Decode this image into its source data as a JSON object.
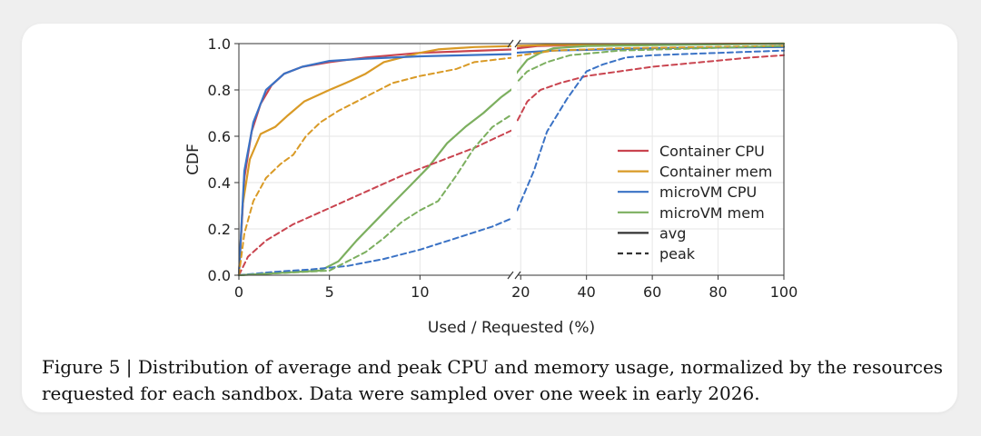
{
  "chart_data": {
    "type": "line",
    "title": "",
    "xlabel": "Used / Requested (%)",
    "ylabel": "CDF",
    "ylim": [
      0,
      1
    ],
    "x_axis": {
      "kind": "broken",
      "segments": [
        {
          "range": [
            0,
            15.2
          ],
          "ticks": [
            0,
            5,
            10
          ]
        },
        {
          "range": [
            18,
            100
          ],
          "ticks": [
            20,
            40,
            60,
            80,
            100
          ]
        }
      ]
    },
    "yticks": [
      0.0,
      0.2,
      0.4,
      0.6,
      0.8,
      1.0
    ],
    "ytick_labels": [
      "0.0",
      "0.2",
      "0.4",
      "0.6",
      "0.8",
      "1.0"
    ],
    "grid": true,
    "legend": {
      "placement": "center-right",
      "entries": [
        {
          "label": "Container CPU",
          "color": "#c9444f",
          "style": "solid"
        },
        {
          "label": "Container mem",
          "color": "#d99a26",
          "style": "solid"
        },
        {
          "label": "microVM CPU",
          "color": "#3a72c5",
          "style": "solid"
        },
        {
          "label": "microVM mem",
          "color": "#7caf5f",
          "style": "solid"
        },
        {
          "label": "avg",
          "color": "#333333",
          "style": "solid"
        },
        {
          "label": "peak",
          "color": "#333333",
          "style": "dashed"
        }
      ]
    },
    "series": [
      {
        "name": "Container CPU",
        "stat": "avg",
        "color": "#c9444f",
        "dash": false,
        "points": [
          [
            0,
            0
          ],
          [
            0.3,
            0.42
          ],
          [
            0.7,
            0.62
          ],
          [
            1.2,
            0.74
          ],
          [
            1.8,
            0.82
          ],
          [
            2.5,
            0.87
          ],
          [
            3.5,
            0.9
          ],
          [
            5,
            0.92
          ],
          [
            7,
            0.94
          ],
          [
            10,
            0.96
          ],
          [
            15.2,
            0.975
          ],
          [
            18,
            0.978
          ],
          [
            25,
            0.99
          ],
          [
            40,
            0.995
          ],
          [
            100,
            1.0
          ]
        ]
      },
      {
        "name": "Container mem",
        "stat": "avg",
        "color": "#d99a26",
        "dash": false,
        "points": [
          [
            0,
            0
          ],
          [
            0.2,
            0.3
          ],
          [
            0.6,
            0.5
          ],
          [
            1.2,
            0.61
          ],
          [
            2,
            0.64
          ],
          [
            2.7,
            0.69
          ],
          [
            3.6,
            0.75
          ],
          [
            5,
            0.8
          ],
          [
            6.2,
            0.84
          ],
          [
            7,
            0.87
          ],
          [
            8,
            0.92
          ],
          [
            9,
            0.94
          ],
          [
            10,
            0.96
          ],
          [
            11,
            0.975
          ],
          [
            13,
            0.985
          ],
          [
            15.2,
            0.99
          ],
          [
            18,
            0.99
          ],
          [
            30,
            0.995
          ],
          [
            100,
            1.0
          ]
        ]
      },
      {
        "name": "microVM CPU",
        "stat": "avg",
        "color": "#3a72c5",
        "dash": false,
        "points": [
          [
            0,
            0
          ],
          [
            0.3,
            0.45
          ],
          [
            0.8,
            0.66
          ],
          [
            1.5,
            0.8
          ],
          [
            2.5,
            0.87
          ],
          [
            3.5,
            0.9
          ],
          [
            5,
            0.925
          ],
          [
            7,
            0.935
          ],
          [
            10,
            0.945
          ],
          [
            15.2,
            0.955
          ],
          [
            18,
            0.96
          ],
          [
            30,
            0.97
          ],
          [
            60,
            0.98
          ],
          [
            100,
            0.985
          ]
        ]
      },
      {
        "name": "microVM mem",
        "stat": "avg",
        "color": "#7caf5f",
        "dash": false,
        "points": [
          [
            0,
            0
          ],
          [
            4.5,
            0.02
          ],
          [
            5.5,
            0.06
          ],
          [
            6.5,
            0.15
          ],
          [
            7.5,
            0.23
          ],
          [
            8.5,
            0.31
          ],
          [
            9.5,
            0.39
          ],
          [
            10.5,
            0.47
          ],
          [
            11.5,
            0.57
          ],
          [
            12.5,
            0.64
          ],
          [
            13.5,
            0.7
          ],
          [
            14.5,
            0.77
          ],
          [
            15.2,
            0.81
          ],
          [
            18,
            0.86
          ],
          [
            22,
            0.93
          ],
          [
            26,
            0.96
          ],
          [
            30,
            0.98
          ],
          [
            40,
            0.99
          ],
          [
            100,
            1.0
          ]
        ]
      },
      {
        "name": "Container CPU",
        "stat": "peak",
        "color": "#c9444f",
        "dash": true,
        "points": [
          [
            0,
            0
          ],
          [
            0.5,
            0.08
          ],
          [
            1.5,
            0.15
          ],
          [
            3,
            0.22
          ],
          [
            5,
            0.29
          ],
          [
            7,
            0.36
          ],
          [
            9,
            0.43
          ],
          [
            11,
            0.49
          ],
          [
            13,
            0.55
          ],
          [
            15.2,
            0.63
          ],
          [
            18,
            0.64
          ],
          [
            22,
            0.75
          ],
          [
            26,
            0.8
          ],
          [
            32,
            0.83
          ],
          [
            40,
            0.86
          ],
          [
            50,
            0.88
          ],
          [
            60,
            0.9
          ],
          [
            75,
            0.92
          ],
          [
            90,
            0.94
          ],
          [
            100,
            0.95
          ]
        ]
      },
      {
        "name": "Container mem",
        "stat": "peak",
        "color": "#d99a26",
        "dash": true,
        "points": [
          [
            0,
            0
          ],
          [
            0.3,
            0.18
          ],
          [
            0.8,
            0.32
          ],
          [
            1.5,
            0.42
          ],
          [
            2.3,
            0.48
          ],
          [
            3,
            0.52
          ],
          [
            3.7,
            0.6
          ],
          [
            4.5,
            0.66
          ],
          [
            5.5,
            0.71
          ],
          [
            6.5,
            0.75
          ],
          [
            7.5,
            0.79
          ],
          [
            8.5,
            0.83
          ],
          [
            10,
            0.86
          ],
          [
            12,
            0.89
          ],
          [
            13,
            0.92
          ],
          [
            15.2,
            0.94
          ],
          [
            18,
            0.945
          ],
          [
            30,
            0.97
          ],
          [
            50,
            0.98
          ],
          [
            100,
            0.99
          ]
        ]
      },
      {
        "name": "microVM CPU",
        "stat": "peak",
        "color": "#3a72c5",
        "dash": true,
        "points": [
          [
            0,
            0
          ],
          [
            2,
            0.015
          ],
          [
            4,
            0.025
          ],
          [
            6,
            0.04
          ],
          [
            8,
            0.07
          ],
          [
            10,
            0.11
          ],
          [
            12,
            0.16
          ],
          [
            14,
            0.21
          ],
          [
            15.2,
            0.25
          ],
          [
            18,
            0.25
          ],
          [
            24,
            0.45
          ],
          [
            28,
            0.62
          ],
          [
            34,
            0.76
          ],
          [
            40,
            0.88
          ],
          [
            45,
            0.91
          ],
          [
            52,
            0.94
          ],
          [
            60,
            0.95
          ],
          [
            80,
            0.96
          ],
          [
            100,
            0.97
          ]
        ]
      },
      {
        "name": "microVM mem",
        "stat": "peak",
        "color": "#7caf5f",
        "dash": true,
        "points": [
          [
            0,
            0
          ],
          [
            5,
            0.02
          ],
          [
            6,
            0.06
          ],
          [
            7,
            0.1
          ],
          [
            8,
            0.16
          ],
          [
            9,
            0.23
          ],
          [
            10,
            0.28
          ],
          [
            11,
            0.32
          ],
          [
            12,
            0.43
          ],
          [
            13,
            0.55
          ],
          [
            14,
            0.64
          ],
          [
            15.2,
            0.7
          ],
          [
            18,
            0.82
          ],
          [
            22,
            0.88
          ],
          [
            28,
            0.92
          ],
          [
            35,
            0.95
          ],
          [
            50,
            0.97
          ],
          [
            100,
            0.99
          ]
        ]
      }
    ]
  },
  "caption": {
    "line1": "Figure 5 | Distribution of average and peak CPU and memory usage, normalized by the resources",
    "line2": "requested for each sandbox. Data were sampled over one week in early 2026."
  }
}
